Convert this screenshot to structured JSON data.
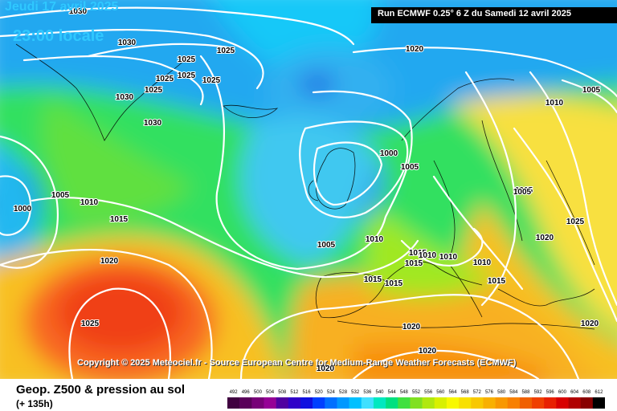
{
  "header": {
    "valid_date": "Jeudi 17 avril 2025",
    "valid_time": "23:00 locale",
    "run_info": "Run ECMWF 0.25° 6 Z du Samedi 12 avril 2025"
  },
  "copyright": "Copyright © 2025 Meteociel.fr - Source European Centre for Medium-Range Weather Forecasts (ECMWF)",
  "footer": {
    "title": "Geop. Z500 & pression au sol",
    "subtitle": "(+ 135h)"
  },
  "legend": {
    "labels": [
      "492",
      "496",
      "500",
      "504",
      "508",
      "512",
      "516",
      "520",
      "524",
      "528",
      "532",
      "536",
      "540",
      "544",
      "548",
      "552",
      "556",
      "560",
      "564",
      "568",
      "572",
      "576",
      "580",
      "584",
      "588",
      "592",
      "596",
      "600",
      "604",
      "608",
      "612"
    ],
    "colors": [
      "#400040",
      "#5a005a",
      "#780078",
      "#960096",
      "#5000a0",
      "#3000c8",
      "#1010e0",
      "#0040ff",
      "#0070ff",
      "#0098ff",
      "#00c0ff",
      "#40e0ff",
      "#00e8c0",
      "#00e080",
      "#40e040",
      "#80e020",
      "#b0e810",
      "#d8f000",
      "#f8f800",
      "#f8e000",
      "#f8c800",
      "#f8b000",
      "#f89800",
      "#f88000",
      "#f06000",
      "#f04000",
      "#e82000",
      "#d80000",
      "#b00000",
      "#880000",
      "#000000"
    ]
  },
  "isobars": [
    {
      "text": "1030"
    },
    {
      "text": "1030"
    },
    {
      "text": "1025"
    },
    {
      "text": "1025"
    },
    {
      "text": "1025"
    },
    {
      "text": "1025"
    },
    {
      "text": "1025"
    },
    {
      "text": "1025"
    },
    {
      "text": "1030"
    },
    {
      "text": "1030"
    },
    {
      "text": "1020"
    },
    {
      "text": "1010"
    },
    {
      "text": "1005"
    },
    {
      "text": "1000"
    },
    {
      "text": "1005"
    },
    {
      "text": "1000"
    },
    {
      "text": "1005"
    },
    {
      "text": "1010"
    },
    {
      "text": "1015"
    },
    {
      "text": "1015"
    },
    {
      "text": "1025"
    },
    {
      "text": "1020"
    },
    {
      "text": "1005"
    },
    {
      "text": "1010"
    },
    {
      "text": "1015"
    },
    {
      "text": "1015"
    },
    {
      "text": "1010"
    },
    {
      "text": "1010"
    },
    {
      "text": "1015"
    },
    {
      "text": "1015"
    },
    {
      "text": "1015"
    },
    {
      "text": "1020"
    },
    {
      "text": "1025"
    },
    {
      "text": "1020"
    },
    {
      "text": "1020"
    },
    {
      "text": "1020"
    },
    {
      "text": "1020"
    },
    {
      "text": "1005"
    },
    {
      "text": "1010"
    }
  ]
}
